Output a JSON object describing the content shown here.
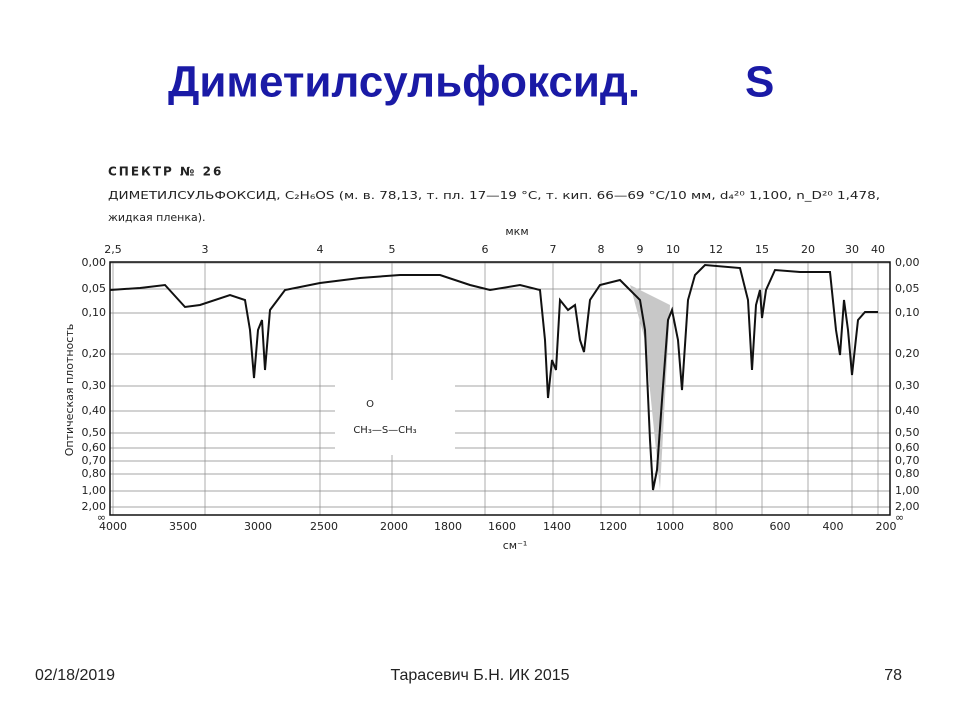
{
  "header": {
    "title": "Диметилсульфоксид.",
    "element": "S"
  },
  "spectrum": {
    "heading": "СПЕКТР № 26",
    "description": [
      "ДИМЕТИЛСУЛЬФОКСИД, C₂H₆OS (м. в. 78,13, т. пл. 17—19 °С, т. кип. 66—69 °С/10 мм, d₄²⁰ 1,100, n_D²⁰ 1,478,",
      "жидкая пленка)."
    ],
    "top_axis_title": "мкм",
    "top_ticks": [
      "2,5",
      "3",
      "4",
      "5",
      "6",
      "7",
      "8",
      "9",
      "10",
      "12",
      "15",
      "20",
      "30",
      "40"
    ],
    "left_axis_title": "Оптическая плотность",
    "side_ticks": [
      "0,00",
      "0,05",
      "0,10",
      "0,20",
      "0,30",
      "0,40",
      "0,50",
      "0,60",
      "0,70",
      "0,80",
      "1,00",
      "2,00",
      "∞"
    ],
    "bottom_ticks": [
      "4000",
      "3500",
      "3000",
      "2500",
      "2000",
      "1800",
      "1600",
      "1400",
      "1200",
      "1000",
      "800",
      "600",
      "400",
      "200"
    ],
    "bottom_axis_title": "см⁻¹",
    "formula": {
      "top": "O",
      "main": "CH₃—S—CH₃"
    }
  },
  "footer": {
    "date": "02/18/2019",
    "author": "Тарасевич Б.Н.  ИК 2015",
    "page": "78"
  }
}
